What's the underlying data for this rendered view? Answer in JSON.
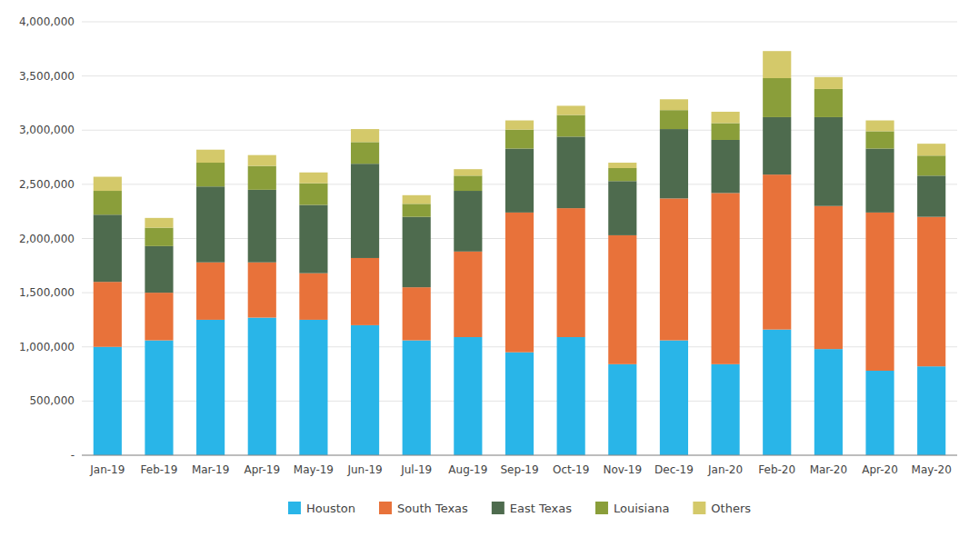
{
  "chart_data": {
    "type": "bar",
    "stacked": true,
    "grid": true,
    "legend": "bottom",
    "categories": [
      "Jan-19",
      "Feb-19",
      "Mar-19",
      "Apr-19",
      "May-19",
      "Jun-19",
      "Jul-19",
      "Aug-19",
      "Sep-19",
      "Oct-19",
      "Nov-19",
      "Dec-19",
      "Jan-20",
      "Feb-20",
      "Mar-20",
      "Apr-20",
      "May-20"
    ],
    "series": [
      {
        "name": "Houston",
        "color": "#29b5e8",
        "values": [
          1000000,
          1060000,
          1250000,
          1270000,
          1250000,
          1200000,
          1060000,
          1090000,
          950000,
          1090000,
          840000,
          1060000,
          840000,
          1160000,
          980000,
          780000,
          820000
        ]
      },
      {
        "name": "South Texas",
        "color": "#e8723a",
        "values": [
          600000,
          440000,
          530000,
          510000,
          430000,
          620000,
          490000,
          790000,
          1290000,
          1190000,
          1190000,
          1310000,
          1580000,
          1430000,
          1320000,
          1460000,
          1380000
        ]
      },
      {
        "name": "East Texas",
        "color": "#4e6b4e",
        "values": [
          620000,
          430000,
          700000,
          670000,
          630000,
          870000,
          650000,
          560000,
          590000,
          660000,
          500000,
          640000,
          490000,
          530000,
          820000,
          590000,
          380000
        ]
      },
      {
        "name": "Louisiana",
        "color": "#8a9e3a",
        "values": [
          220000,
          170000,
          220000,
          220000,
          200000,
          200000,
          120000,
          140000,
          175000,
          200000,
          120000,
          175000,
          155000,
          360000,
          260000,
          160000,
          185000
        ]
      },
      {
        "name": "Others",
        "color": "#d4c96a",
        "values": [
          130000,
          90000,
          120000,
          100000,
          100000,
          120000,
          80000,
          60000,
          85000,
          85000,
          50000,
          100000,
          105000,
          250000,
          110000,
          100000,
          110000
        ]
      }
    ],
    "ylim": [
      0,
      4000000
    ],
    "yticks": [
      {
        "value": 0,
        "label": "-"
      },
      {
        "value": 500000,
        "label": "500,000"
      },
      {
        "value": 1000000,
        "label": "1,000,000"
      },
      {
        "value": 1500000,
        "label": "1,500,000"
      },
      {
        "value": 2000000,
        "label": "2,000,000"
      },
      {
        "value": 2500000,
        "label": "2,500,000"
      },
      {
        "value": 3000000,
        "label": "3,000,000"
      },
      {
        "value": 3500000,
        "label": "3,500,000"
      },
      {
        "value": 4000000,
        "label": "4,000,000"
      }
    ]
  }
}
